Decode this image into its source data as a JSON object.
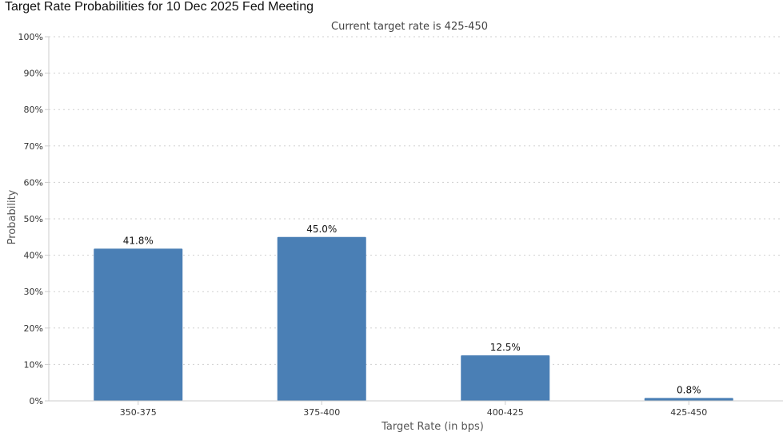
{
  "title": "Target Rate Probabilities for 10 Dec 2025 Fed Meeting",
  "chart_data": {
    "type": "bar",
    "subtitle": "Current target rate is 425-450",
    "categories": [
      "350-375",
      "375-400",
      "400-425",
      "425-450"
    ],
    "values": [
      41.8,
      45.0,
      12.5,
      0.8
    ],
    "value_labels": [
      "41.8%",
      "45.0%",
      "12.5%",
      "0.8%"
    ],
    "xlabel": "Target Rate (in bps)",
    "ylabel": "Probability",
    "ylim": [
      0,
      100
    ],
    "yticks": [
      0,
      10,
      20,
      30,
      40,
      50,
      60,
      70,
      80,
      90,
      100
    ],
    "ytick_labels": [
      "0%",
      "10%",
      "20%",
      "30%",
      "40%",
      "50%",
      "60%",
      "70%",
      "80%",
      "90%",
      "100%"
    ],
    "grid": true,
    "bar_color": "#4a7fb5"
  }
}
